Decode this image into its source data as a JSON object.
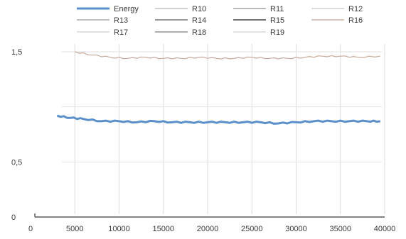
{
  "chart_data": {
    "type": "line",
    "title": "",
    "xlabel": "",
    "ylabel": "",
    "xlim": [
      0,
      40000
    ],
    "ylim": [
      0,
      1.5
    ],
    "x_ticks": [
      0,
      5000,
      10000,
      15000,
      20000,
      25000,
      30000,
      35000,
      40000
    ],
    "y_ticks": [
      {
        "value": 0,
        "label": "0"
      },
      {
        "value": 0.5,
        "label": "0,5"
      },
      {
        "value": 1.5,
        "label": "1,5"
      }
    ],
    "grid": {
      "vertical": true,
      "horizontal": true
    },
    "legend_position": "top",
    "series": [
      {
        "name": "Energy",
        "color": "#5b8fc9",
        "width": 3,
        "x": [
          3000,
          4500,
          6000,
          8000,
          10000,
          12000,
          14000,
          16000,
          18000,
          20000,
          22000,
          24000,
          26000,
          28000,
          30000,
          32000,
          34000,
          36000,
          38000,
          39500
        ],
        "y": [
          0.92,
          0.9,
          0.89,
          0.87,
          0.87,
          0.86,
          0.87,
          0.86,
          0.86,
          0.86,
          0.86,
          0.86,
          0.86,
          0.85,
          0.86,
          0.87,
          0.87,
          0.87,
          0.87,
          0.87
        ]
      },
      {
        "name": "R10",
        "color": "#b9b9b9",
        "width": 1,
        "x": [],
        "y": []
      },
      {
        "name": "R11",
        "color": "#8f8f8f",
        "width": 1,
        "x": [],
        "y": []
      },
      {
        "name": "R12",
        "color": "#c8c8c8",
        "width": 1,
        "x": [],
        "y": []
      },
      {
        "name": "R13",
        "color": "#9a9a9a",
        "width": 1,
        "x": [],
        "y": []
      },
      {
        "name": "R14",
        "color": "#5a5a5a",
        "width": 1,
        "x": [],
        "y": []
      },
      {
        "name": "R15",
        "color": "#1f1f1f",
        "width": 1,
        "x": [],
        "y": []
      },
      {
        "name": "R16",
        "color": "#c5a898",
        "width": 1.2,
        "x": [
          5000,
          7000,
          9000,
          11000,
          13000,
          15000,
          17000,
          19000,
          21000,
          23000,
          25000,
          27000,
          29000,
          31000,
          33000,
          35000,
          37000,
          39500
        ],
        "y": [
          1.5,
          1.47,
          1.45,
          1.44,
          1.45,
          1.44,
          1.44,
          1.45,
          1.44,
          1.44,
          1.45,
          1.44,
          1.44,
          1.45,
          1.46,
          1.46,
          1.45,
          1.46
        ]
      },
      {
        "name": "R17",
        "color": "#cfcfcf",
        "width": 1,
        "x": [],
        "y": []
      },
      {
        "name": "R18",
        "color": "#7a7a7a",
        "width": 1,
        "x": [],
        "y": []
      },
      {
        "name": "R19",
        "color": "#d2d2d2",
        "width": 1,
        "x": [],
        "y": []
      }
    ]
  }
}
